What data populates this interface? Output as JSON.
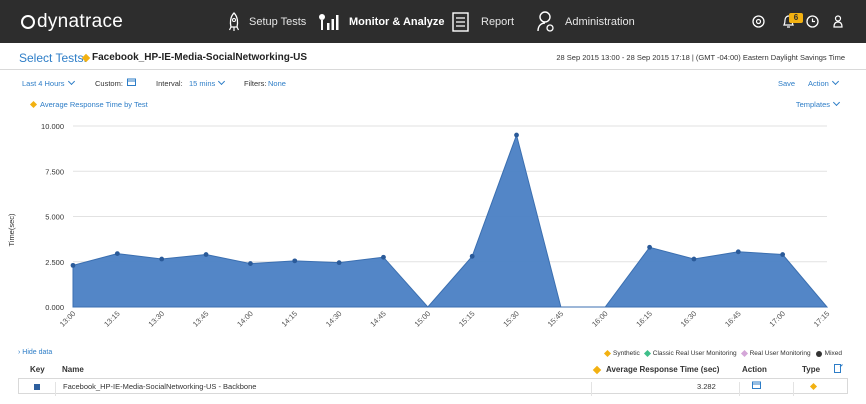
{
  "app": {
    "brand": "dynatrace"
  },
  "nav": {
    "items": [
      {
        "label": "Setup Tests",
        "icon": "rocket-icon",
        "active": false
      },
      {
        "label": "Monitor & Analyze",
        "icon": "monitor-bars-icon",
        "active": true
      },
      {
        "label": "Report",
        "icon": "report-icon",
        "active": false
      },
      {
        "label": "Administration",
        "icon": "user-gear-icon",
        "active": false
      }
    ],
    "notification_count": "6"
  },
  "select": {
    "label": "Select Tests:",
    "value": "Facebook_HP-IE-Media-SocialNetworking-US",
    "time_range": "28 Sep 2015 13:00 - 28 Sep 2015 17:18  |  (GMT -04:00) Eastern Daylight Savings Time"
  },
  "filters": {
    "range_label": "Last 4 Hours",
    "custom_label": "Custom:",
    "interval_label": "Interval:",
    "interval_value": "15 mins",
    "filters_label": "Filters:",
    "filters_value": "None",
    "save_label": "Save",
    "action_label": "Action"
  },
  "chart_header": {
    "title": "Average Response Time by Test",
    "templates_label": "Templates"
  },
  "colors": {
    "accent": "#2d7dc7",
    "area_fill": "#4a80c4",
    "area_line": "#3b6fb0",
    "synthetic": "#f2b111",
    "classic_rum": "#3fbf8a",
    "rum": "#d4a6d8",
    "topbar": "#2d2d2d"
  },
  "chart_data": {
    "type": "area",
    "title": "",
    "xlabel": "",
    "ylabel": "Time(sec)",
    "x": [
      "13:00",
      "13:15",
      "13:30",
      "13:45",
      "14:00",
      "14:15",
      "14:30",
      "14:45",
      "15:00",
      "15:15",
      "15:30",
      "15:45",
      "16:00",
      "16:15",
      "16:30",
      "16:45",
      "17:00",
      "17:15"
    ],
    "series": [
      {
        "values": [
          2.3,
          2.95,
          2.65,
          2.9,
          2.4,
          2.55,
          2.45,
          2.75,
          0,
          2.8,
          9.5,
          0,
          0,
          3.3,
          2.65,
          3.05,
          2.9,
          0
        ],
        "markers": [
          true,
          true,
          true,
          true,
          true,
          true,
          true,
          true,
          false,
          true,
          true,
          false,
          false,
          true,
          true,
          true,
          true,
          false
        ]
      }
    ],
    "ylim": [
      0,
      10
    ],
    "yticks": [
      "0.000",
      "2.500",
      "5.000",
      "7.500",
      "10.000"
    ],
    "grid": true
  },
  "data_panel": {
    "hide_label": "Hide data",
    "legend": [
      {
        "label": "Synthetic",
        "type": "synthetic"
      },
      {
        "label": "Classic Real User Monitoring",
        "type": "classic_rum"
      },
      {
        "label": "Real User Monitoring",
        "type": "rum"
      },
      {
        "label": "Mixed",
        "type": "mixed"
      }
    ],
    "columns": {
      "key": "Key",
      "name": "Name",
      "avg": "Average Response Time (sec)",
      "action": "Action",
      "type": "Type"
    },
    "rows": [
      {
        "name": "Facebook_HP-IE-Media-SocialNetworking-US - Backbone",
        "avg": "3.282"
      }
    ]
  }
}
